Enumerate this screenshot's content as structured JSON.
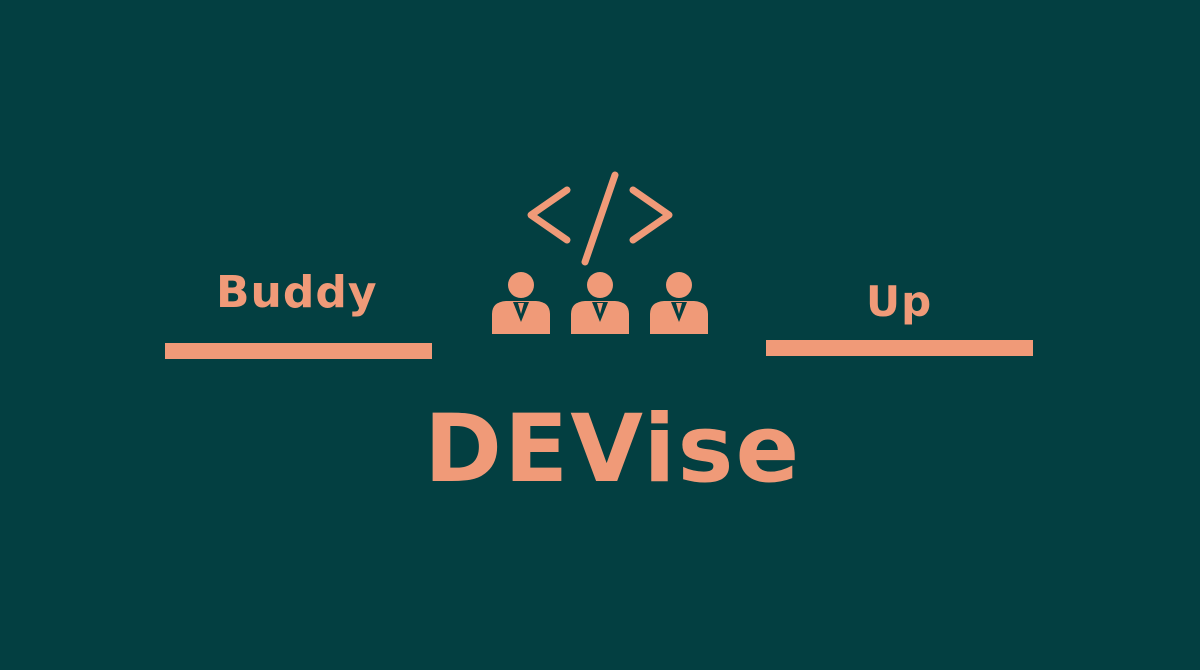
{
  "logo": {
    "left_word": "Buddy",
    "right_word": "Up",
    "main_word": "DEVise",
    "emblem_icons": [
      "code-brackets-icon",
      "person-icon",
      "person-icon",
      "person-icon"
    ]
  },
  "colors": {
    "background": "#033f41",
    "accent": "#f09a78"
  }
}
